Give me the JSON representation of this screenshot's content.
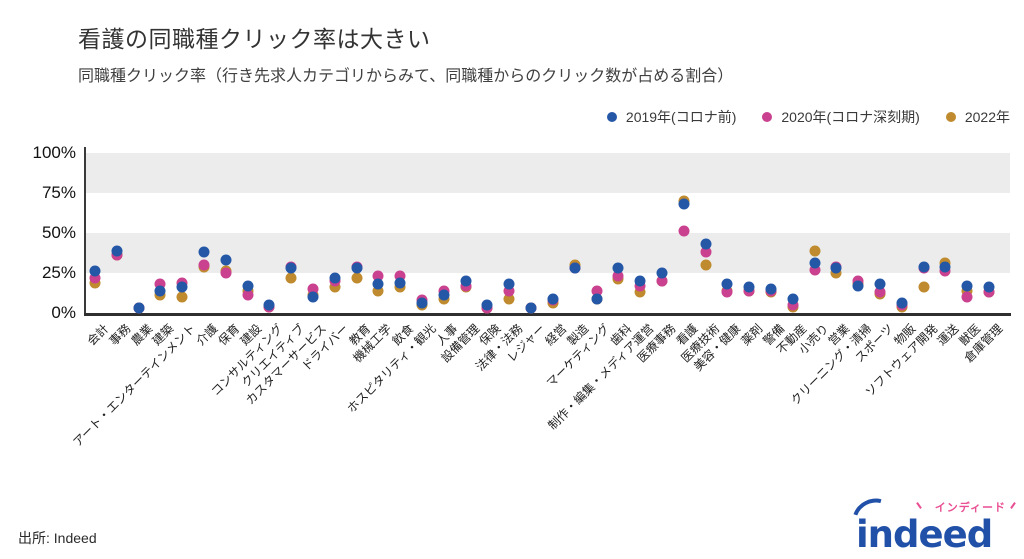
{
  "header": {
    "title": "看護の同職種クリック率は大きい",
    "subtitle": "同職種クリック率（行き先求人カテゴリからみて、同職種からのクリック数が占める割合）"
  },
  "legend": [
    {
      "label": "2019年(コロナ前)",
      "color": "#2557a7"
    },
    {
      "label": "2020年(コロナ深刻期)",
      "color": "#c9418f"
    },
    {
      "label": "2022年",
      "color": "#bf8b2e"
    }
  ],
  "footer": {
    "source": "出所: Indeed",
    "logo_text": "indeed",
    "logo_katakana": "インディード"
  },
  "colors": {
    "band": "#ececec",
    "axis": "#2f2f2f",
    "logo_blue": "#2050a7",
    "logo_pink": "#e94f93"
  },
  "chart_data": {
    "type": "scatter",
    "title": "看護の同職種クリック率は大きい",
    "subtitle": "同職種クリック率（行き先求人カテゴリからみて、同職種からのクリック数が占める割合）",
    "ylim": [
      0,
      100
    ],
    "y_ticks": [
      0,
      25,
      50,
      75,
      100
    ],
    "y_tick_labels": [
      "0%",
      "25%",
      "50%",
      "75%",
      "100%"
    ],
    "background_bands": [
      [
        25,
        50
      ],
      [
        75,
        100
      ]
    ],
    "grid": false,
    "legend_position": "top-right",
    "categories": [
      "会計",
      "事務",
      "農業",
      "建築",
      "アート・エンターテインメント",
      "介護",
      "保育",
      "建設",
      "コンサルティング",
      "クリエイティブ",
      "カスタマーサービス",
      "ドライバー",
      "教育",
      "機械工学",
      "飲食",
      "ホスピタリティ・観光",
      "人事",
      "設備管理",
      "保険",
      "法律・法務",
      "レジャー",
      "経営",
      "製造",
      "マーケティング",
      "歯科",
      "制作・編集・メディア運営",
      "医療事務",
      "看護",
      "医療技術",
      "美容・健康",
      "薬剤",
      "警備",
      "不動産",
      "小売り",
      "営業",
      "クリーニング・清掃",
      "スポーツ",
      "物販",
      "ソフトウェア開発",
      "運送",
      "獣医",
      "倉庫管理"
    ],
    "series": [
      {
        "name": "2019年(コロナ前)",
        "color": "#2557a7",
        "values": [
          26,
          39,
          3,
          14,
          16,
          38,
          33,
          17,
          5,
          28,
          10,
          22,
          28,
          18,
          19,
          6,
          11,
          20,
          5,
          18,
          3,
          9,
          28,
          9,
          28,
          20,
          25,
          68,
          43,
          18,
          16,
          15,
          9,
          31,
          28,
          17,
          18,
          6,
          29,
          29,
          17,
          16
        ]
      },
      {
        "name": "2020年(コロナ深刻期)",
        "color": "#c9418f",
        "values": [
          22,
          36,
          3,
          18,
          19,
          30,
          25,
          11,
          4,
          29,
          15,
          20,
          29,
          23,
          23,
          8,
          14,
          17,
          3,
          14,
          3,
          8,
          28,
          14,
          23,
          17,
          20,
          51,
          38,
          13,
          14,
          14,
          5,
          27,
          29,
          20,
          13,
          5,
          28,
          26,
          10,
          13
        ]
      },
      {
        "name": "2022年",
        "color": "#bf8b2e",
        "values": [
          19,
          36,
          3,
          11,
          10,
          29,
          26,
          14,
          4,
          22,
          11,
          16,
          22,
          14,
          16,
          5,
          9,
          16,
          3,
          9,
          3,
          6,
          30,
          9,
          21,
          13,
          20,
          70,
          30,
          14,
          14,
          13,
          4,
          39,
          25,
          18,
          12,
          4,
          16,
          31,
          14,
          13
        ]
      }
    ]
  }
}
